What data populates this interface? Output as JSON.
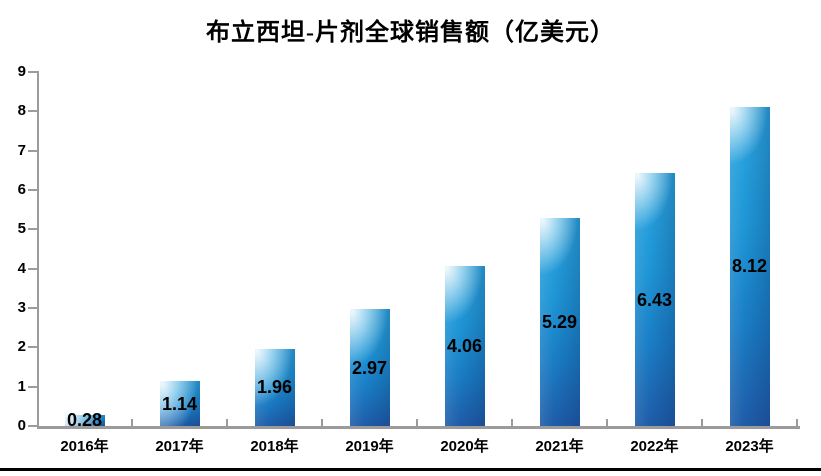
{
  "title": "布立西坦-片剂全球销售额（亿美元）",
  "chart_data": {
    "type": "bar",
    "title": "布立西坦-片剂全球销售额（亿美元）",
    "categories": [
      "2016年",
      "2017年",
      "2018年",
      "2019年",
      "2020年",
      "2021年",
      "2022年",
      "2023年"
    ],
    "values": [
      0.28,
      1.14,
      1.96,
      2.97,
      4.06,
      5.29,
      6.43,
      8.12
    ],
    "data_labels": [
      "0.28",
      "1.14",
      "1.96",
      "2.97",
      "4.06",
      "5.29",
      "6.43",
      "8.12"
    ],
    "xlabel": "",
    "ylabel": "",
    "ylim": [
      0,
      9
    ],
    "y_ticks": [
      0,
      1,
      2,
      3,
      4,
      5,
      6,
      7,
      8,
      9
    ],
    "grid": false,
    "legend": false,
    "label_position": "inside-center"
  },
  "colors": {
    "bar_top": "#2BA7E0",
    "bar_bottom": "#1F5CA8",
    "bar_highlight": "#CDEEFA",
    "axis": "#9B9B9B",
    "text": "#000000",
    "bottom_rule": "#000000",
    "background": "#FFFFFF"
  }
}
